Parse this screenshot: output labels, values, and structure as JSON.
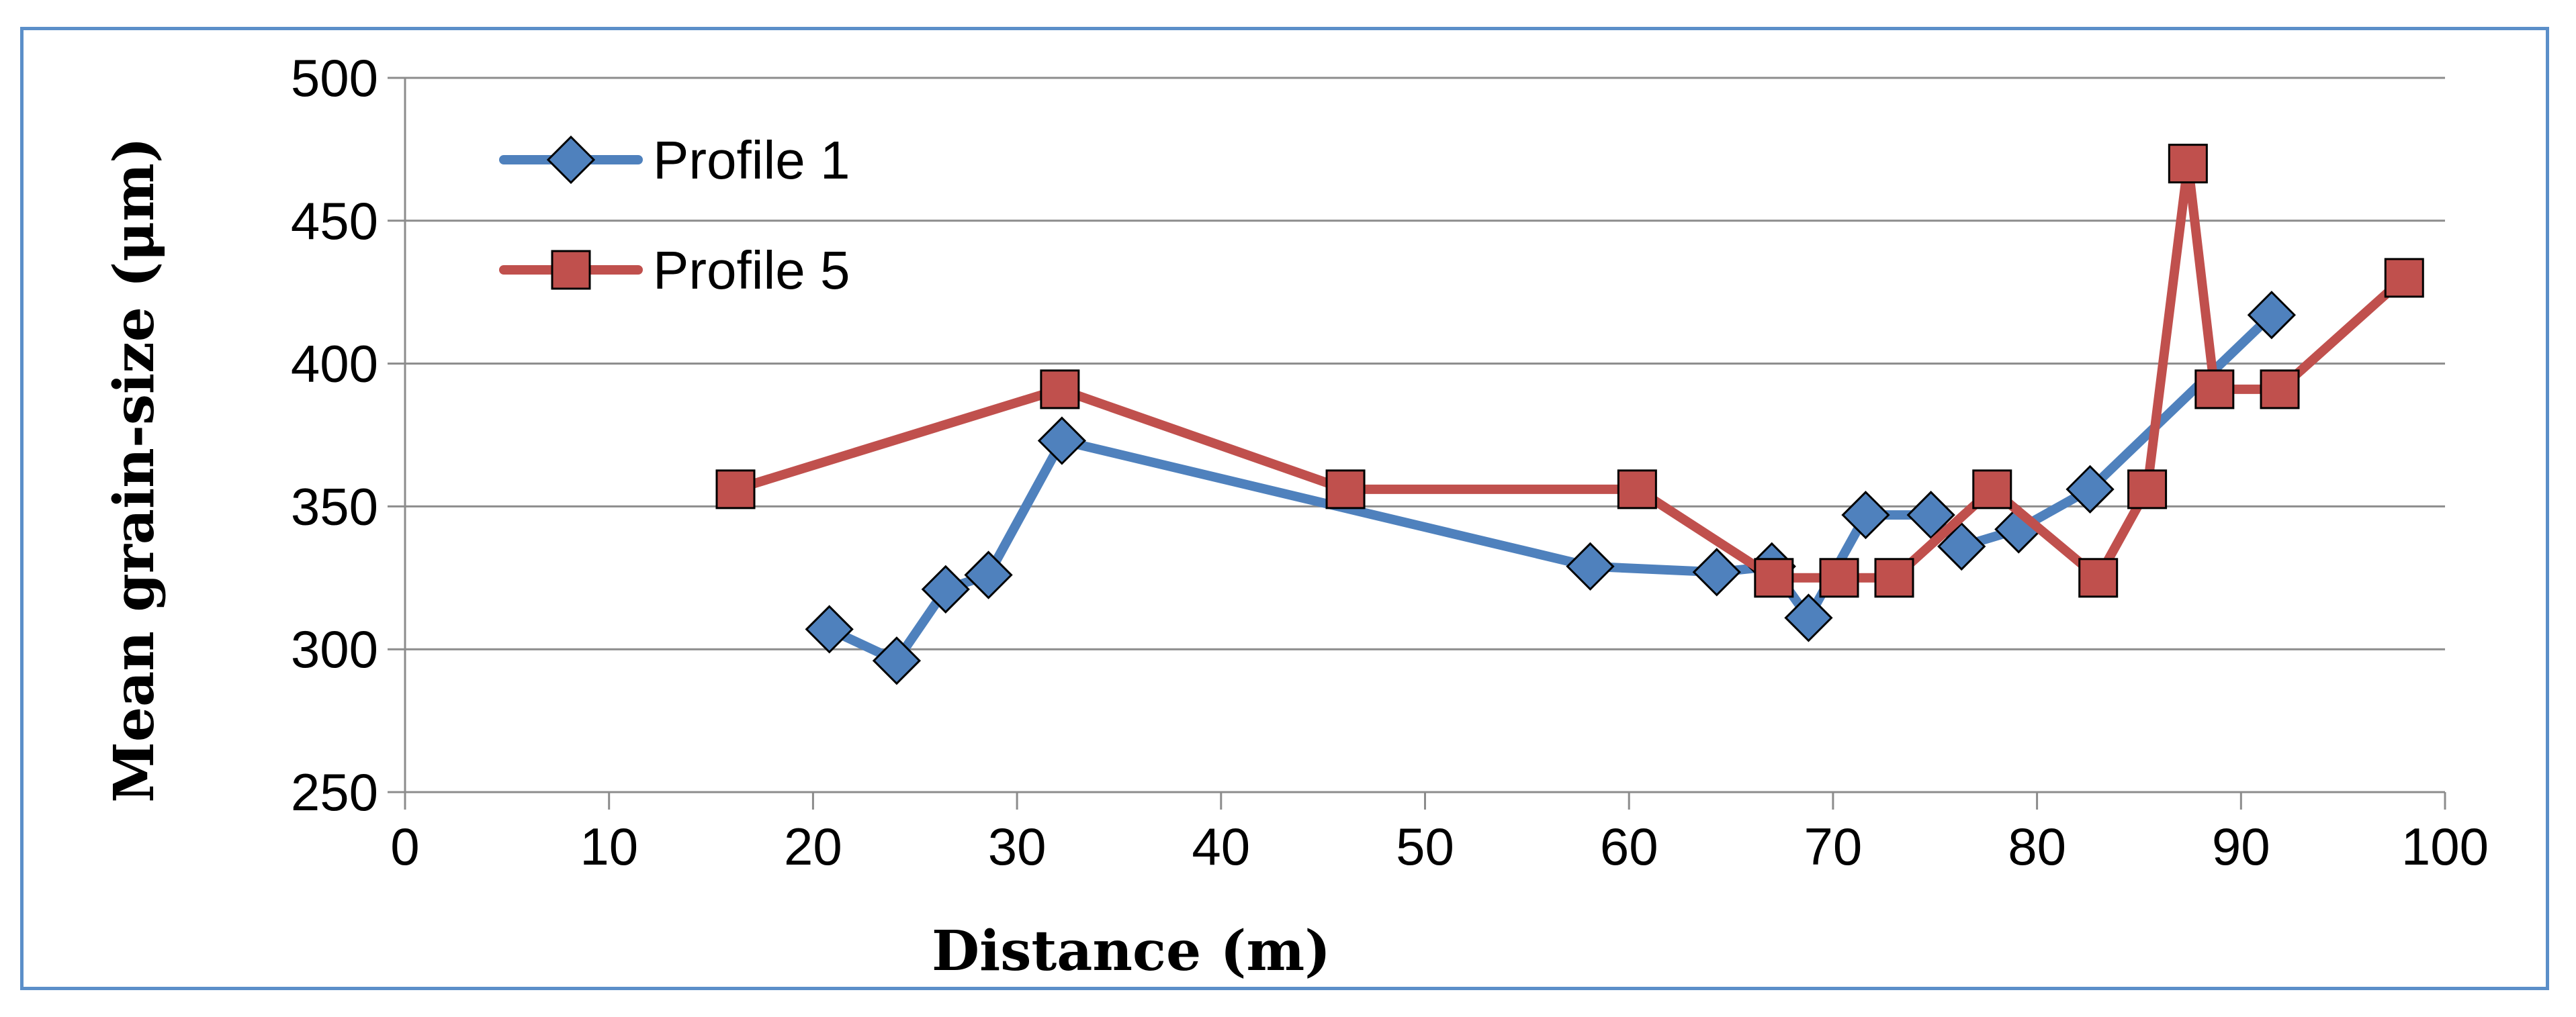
{
  "chart_data": {
    "type": "line",
    "title": "",
    "xlabel": "Distance (m)",
    "ylabel": "Mean grain-size  (μm)",
    "xlim": [
      0,
      100
    ],
    "ylim": [
      250,
      500
    ],
    "xticks": [
      0,
      10,
      20,
      30,
      40,
      50,
      60,
      70,
      80,
      90,
      100
    ],
    "yticks": [
      250,
      300,
      350,
      400,
      450,
      500
    ],
    "grid": "horizontal",
    "legend_position": "top-left",
    "series": [
      {
        "name": "Profile 1",
        "color": "#4f81bd",
        "marker": "diamond",
        "x": [
          20.8,
          24.1,
          26.5,
          28.6,
          32.2,
          58.1,
          64.3,
          67.0,
          68.8,
          71.6,
          74.8,
          76.3,
          79.1,
          82.6,
          91.5
        ],
        "y": [
          307,
          296,
          321,
          326,
          373,
          329,
          327,
          329,
          311,
          347,
          347,
          336,
          342,
          356,
          417
        ]
      },
      {
        "name": "Profile 5",
        "color": "#c0504d",
        "marker": "square",
        "x": [
          16.2,
          32.1,
          46.1,
          60.4,
          67.1,
          70.3,
          73.0,
          77.8,
          83.0,
          85.4,
          87.4,
          88.7,
          91.9,
          98.0
        ],
        "y": [
          356,
          391,
          356,
          356,
          325,
          325,
          325,
          356,
          325,
          356,
          470,
          391,
          391,
          430
        ]
      }
    ]
  }
}
